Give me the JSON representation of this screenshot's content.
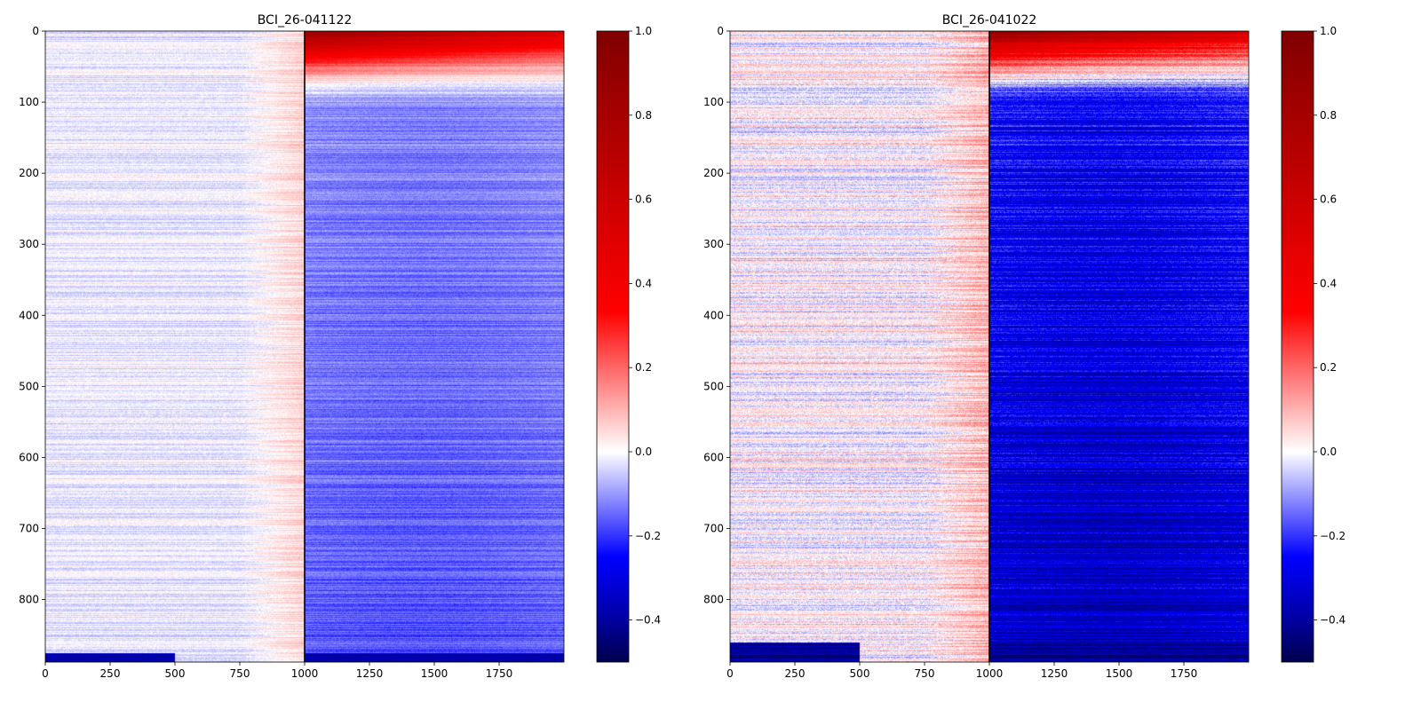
{
  "chart_data": [
    {
      "type": "heatmap",
      "title": "BCI_26-041122",
      "xlabel": "",
      "ylabel": "",
      "x_range": [
        0,
        2000
      ],
      "y_range": [
        0,
        888
      ],
      "y_inverted": true,
      "x_ticks": [
        0,
        250,
        500,
        750,
        1000,
        1250,
        1500,
        1750
      ],
      "y_ticks": [
        0,
        100,
        200,
        300,
        400,
        500,
        600,
        700,
        800
      ],
      "vertical_marker_x": 1000,
      "colormap": "seismic",
      "colorbar": {
        "range": [
          -0.5,
          1.0
        ],
        "ticks": [
          1.0,
          0.8,
          0.6,
          0.4,
          0.2,
          0.0,
          -0.2,
          -0.4
        ],
        "tick_labels": [
          "1.0",
          "0.8",
          "0.6",
          "0.4",
          "0.2",
          "0.0",
          "−0.2",
          "−0.4"
        ]
      },
      "pattern": {
        "pre_level": -0.02,
        "ramp_start": 750,
        "ramp_end": 1000,
        "ramp_level": 0.06,
        "post_level": -0.12,
        "post_peak_x": 1450,
        "post_decay": 0.05,
        "top_rows_max": 0.9,
        "top_rows_extent": 110,
        "bottom_rows_level": -0.35,
        "bottom_rows_start": 875,
        "noise": 0.05
      }
    },
    {
      "type": "heatmap",
      "title": "BCI_26-041022",
      "xlabel": "",
      "ylabel": "",
      "x_range": [
        0,
        2000
      ],
      "y_range": [
        0,
        888
      ],
      "y_inverted": true,
      "x_ticks": [
        0,
        250,
        500,
        750,
        1000,
        1250,
        1500,
        1750
      ],
      "y_ticks": [
        0,
        100,
        200,
        300,
        400,
        500,
        600,
        700,
        800
      ],
      "vertical_marker_x": 1000,
      "colormap": "seismic",
      "colorbar": {
        "range": [
          -0.5,
          1.0
        ],
        "ticks": [
          1.0,
          0.8,
          0.6,
          0.4,
          0.2,
          0.0,
          -0.2,
          -0.4
        ],
        "tick_labels": [
          "1.0",
          "0.8",
          "0.6",
          "0.4",
          "0.2",
          "0.0",
          "−0.2",
          "−0.4"
        ]
      },
      "pattern": {
        "pre_level": 0.0,
        "ramp_start": 750,
        "ramp_end": 1000,
        "ramp_level": 0.1,
        "post_level": -0.25,
        "post_peak_x": 1450,
        "post_decay": 0.1,
        "top_rows_max": 0.9,
        "top_rows_extent": 110,
        "bottom_rows_level": -0.4,
        "bottom_rows_start": 860,
        "noise": 0.1
      }
    }
  ]
}
